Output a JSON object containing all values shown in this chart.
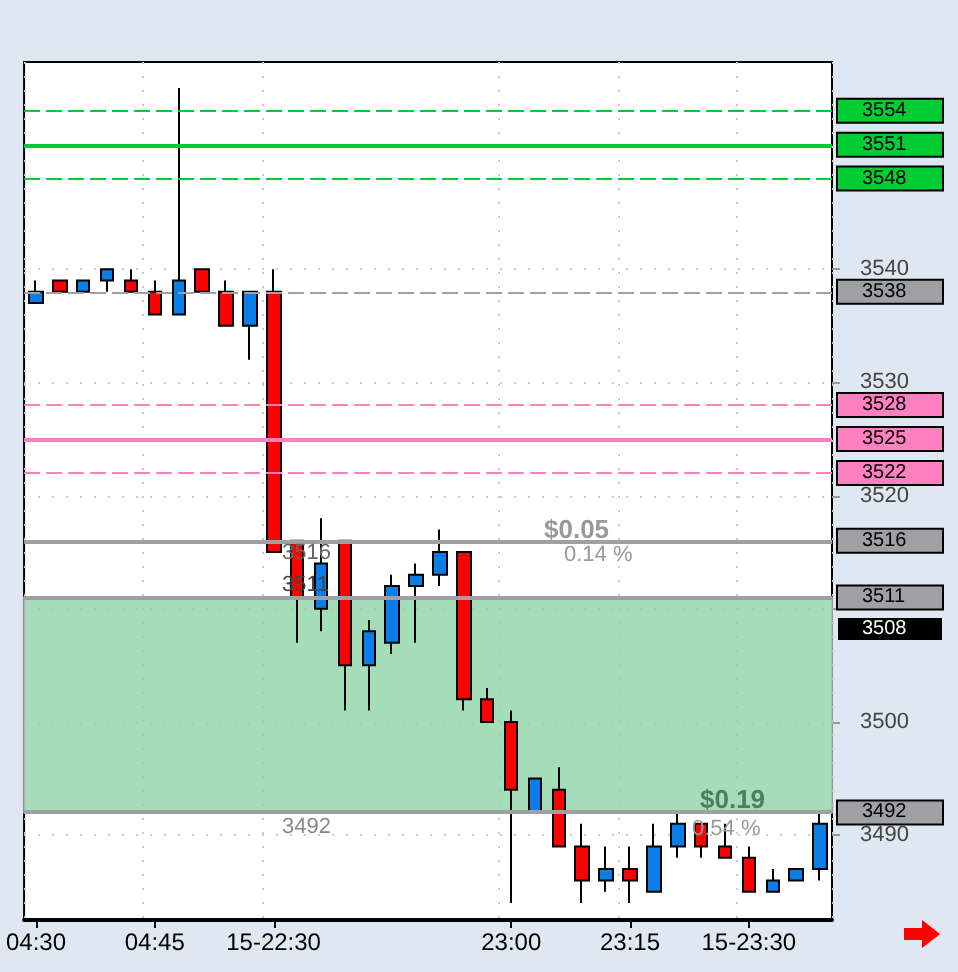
{
  "chart_data": {
    "type": "candlestick",
    "categories": [
      "04:30",
      null,
      null,
      null,
      null,
      "04:45",
      null,
      null,
      null,
      null,
      "15-22:30",
      null,
      null,
      null,
      null,
      null,
      null,
      null,
      null,
      null,
      "23:00",
      null,
      null,
      null,
      null,
      "23:15",
      null,
      null,
      null,
      null,
      "15-23:30",
      null,
      null,
      null
    ],
    "ohlc": [
      [
        3537,
        3539,
        3537,
        3538
      ],
      [
        3539,
        3539,
        3538,
        3538
      ],
      [
        3538,
        3539,
        3538,
        3539
      ],
      [
        3539,
        3540,
        3538,
        3540
      ],
      [
        3539,
        3540,
        3538,
        3538
      ],
      [
        3538,
        3539,
        3536,
        3536
      ],
      [
        3536,
        3556,
        3536,
        3539
      ],
      [
        3540,
        3540,
        3538,
        3538
      ],
      [
        3538,
        3539,
        3535,
        3535
      ],
      [
        3535,
        3538,
        3532,
        3538
      ],
      [
        3538,
        3540,
        3515,
        3515
      ],
      [
        3516,
        3516,
        3507,
        3511
      ],
      [
        3510,
        3518,
        3508,
        3514
      ],
      [
        3516,
        3516,
        3501,
        3505
      ],
      [
        3505,
        3509,
        3501,
        3508
      ],
      [
        3507,
        3513,
        3506,
        3512
      ],
      [
        3512,
        3514,
        3507,
        3513
      ],
      [
        3513,
        3517,
        3512,
        3515
      ],
      [
        3515,
        3515,
        3501,
        3502
      ],
      [
        3502,
        3503,
        3500,
        3500
      ],
      [
        3500,
        3501,
        3484,
        3494
      ],
      [
        3492,
        3495,
        3492,
        3495
      ],
      [
        3494,
        3496,
        3489,
        3489
      ],
      [
        3489,
        3491,
        3484,
        3486
      ],
      [
        3486,
        3489,
        3485,
        3487
      ],
      [
        3487,
        3489,
        3484,
        3486
      ],
      [
        3485,
        3491,
        3485,
        3489
      ],
      [
        3489,
        3492,
        3488,
        3491
      ],
      [
        3491,
        3491,
        3488,
        3489
      ],
      [
        3489,
        3491,
        3488,
        3488
      ],
      [
        3488,
        3489,
        3485,
        3485
      ],
      [
        3485,
        3487,
        3485,
        3486
      ],
      [
        3486,
        3487,
        3486,
        3487
      ],
      [
        3487,
        3492,
        3486,
        3491
      ]
    ],
    "colors": [
      "#0a7de6",
      "#ff0000",
      "#0a7de6",
      "#0a7de6",
      "#ff0000",
      "#ff0000",
      "#0a7de6",
      "#ff0000",
      "#ff0000",
      "#0a7de6",
      "#ff0000",
      "#ff0000",
      "#0a7de6",
      "#ff0000",
      "#0a7de6",
      "#0a7de6",
      "#0a7de6",
      "#0a7de6",
      "#ff0000",
      "#ff0000",
      "#ff0000",
      "#0a7de6",
      "#ff0000",
      "#ff0000",
      "#0a7de6",
      "#ff0000",
      "#0a7de6",
      "#0a7de6",
      "#ff0000",
      "#ff0000",
      "#ff0000",
      "#0a7de6",
      "#0a7de6",
      "#0a7de6"
    ],
    "ylim": [
      3482.5,
      3558.3
    ],
    "yticks": [
      3490,
      3500,
      {
        "value": 3510,
        "label": null
      },
      3520,
      3530,
      3540
    ],
    "grid": true,
    "ref_lines": [
      {
        "axis": "y",
        "value": 3554,
        "label": "3554",
        "color": "#00cc33",
        "line_style": "dashed"
      },
      {
        "axis": "y",
        "value": 3551,
        "label": "3551",
        "color": "#00cc33",
        "line_style": "solid"
      },
      {
        "axis": "y",
        "value": 3548,
        "label": "3548",
        "color": "#00cc33",
        "line_style": "dashed"
      },
      {
        "axis": "y",
        "value": 3538,
        "label": "3538",
        "color": "#a0a0a4",
        "line_style": "dashed"
      },
      {
        "axis": "y",
        "value": 3528,
        "label": "3528",
        "color": "#ff80c0",
        "line_style": "dashed"
      },
      {
        "axis": "y",
        "value": 3525,
        "label": "3525",
        "color": "#ff80c0",
        "line_style": "solid"
      },
      {
        "axis": "y",
        "value": 3522,
        "label": "3522",
        "color": "#ff80c0",
        "line_style": "dashed"
      },
      {
        "axis": "y",
        "value": 3516,
        "label": "3516",
        "color": "#a0a0a4",
        "line_style": "solid"
      },
      {
        "axis": "y",
        "value": 3511,
        "label": "3511",
        "color": "#a0a0a4",
        "line_style": "solid"
      },
      {
        "axis": "y",
        "value": 3492,
        "label": "3492",
        "color": "#a0a0a4",
        "line_style": "solid"
      }
    ],
    "bands": [
      {
        "axis": "y",
        "from": 3492,
        "to": 3511,
        "color": "#8fd4a8"
      }
    ],
    "annotations": [
      "$0.05",
      "0.14 %",
      "$0.19",
      "0.54 %",
      "3516",
      "3511",
      "3492",
      "3508"
    ]
  }
}
